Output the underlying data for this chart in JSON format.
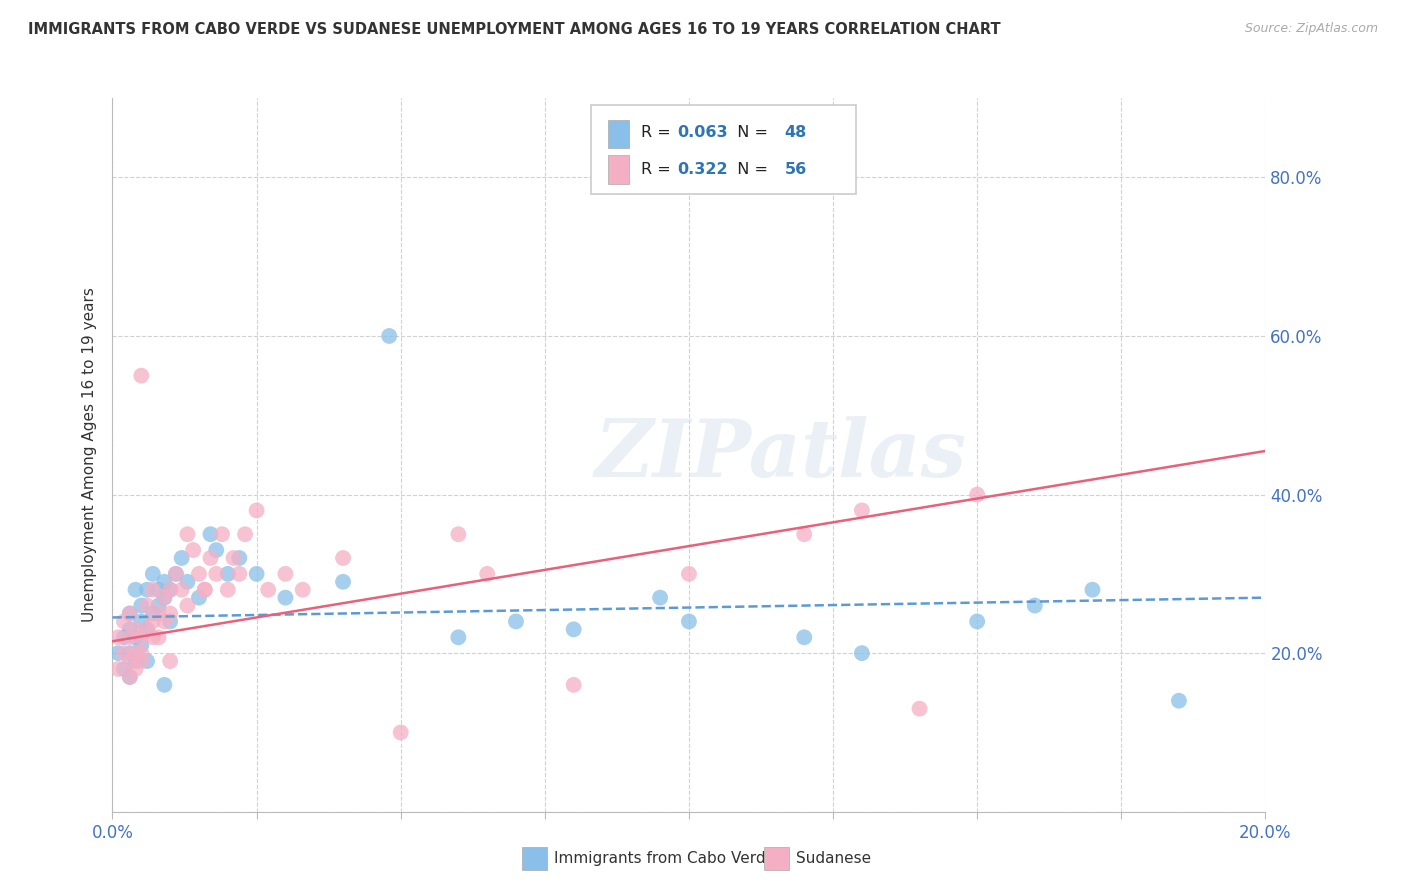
{
  "title": "IMMIGRANTS FROM CABO VERDE VS SUDANESE UNEMPLOYMENT AMONG AGES 16 TO 19 YEARS CORRELATION CHART",
  "source": "Source: ZipAtlas.com",
  "ylabel": "Unemployment Among Ages 16 to 19 years",
  "xlim": [
    0.0,
    0.2
  ],
  "ylim": [
    0.0,
    0.9
  ],
  "cabo_verde_color": "#89bfe8",
  "sudanese_color": "#f5afc4",
  "cabo_verde_line_color": "#5b9bd5",
  "sudanese_line_color": "#e8607a",
  "R_cabo": 0.063,
  "N_cabo": 48,
  "R_sudanese": 0.322,
  "N_sudanese": 56,
  "watermark": "ZIPatlas",
  "background_color": "#ffffff",
  "grid_color": "#cccccc",
  "cabo_verde_x": [
    0.001,
    0.002,
    0.002,
    0.003,
    0.003,
    0.003,
    0.004,
    0.004,
    0.004,
    0.005,
    0.005,
    0.005,
    0.006,
    0.006,
    0.007,
    0.007,
    0.008,
    0.008,
    0.009,
    0.009,
    0.01,
    0.01,
    0.011,
    0.012,
    0.013,
    0.015,
    0.017,
    0.018,
    0.02,
    0.022,
    0.025,
    0.03,
    0.04,
    0.048,
    0.06,
    0.07,
    0.08,
    0.095,
    0.1,
    0.12,
    0.13,
    0.15,
    0.16,
    0.17,
    0.185,
    0.003,
    0.006,
    0.009
  ],
  "cabo_verde_y": [
    0.2,
    0.22,
    0.18,
    0.25,
    0.23,
    0.2,
    0.28,
    0.22,
    0.19,
    0.26,
    0.24,
    0.21,
    0.28,
    0.23,
    0.3,
    0.25,
    0.28,
    0.26,
    0.29,
    0.27,
    0.28,
    0.24,
    0.3,
    0.32,
    0.29,
    0.27,
    0.35,
    0.33,
    0.3,
    0.32,
    0.3,
    0.27,
    0.29,
    0.6,
    0.22,
    0.24,
    0.23,
    0.27,
    0.24,
    0.22,
    0.2,
    0.24,
    0.26,
    0.28,
    0.14,
    0.17,
    0.19,
    0.16
  ],
  "sudanese_x": [
    0.001,
    0.001,
    0.002,
    0.002,
    0.003,
    0.003,
    0.003,
    0.004,
    0.004,
    0.004,
    0.005,
    0.005,
    0.005,
    0.006,
    0.006,
    0.007,
    0.007,
    0.008,
    0.008,
    0.009,
    0.009,
    0.01,
    0.01,
    0.011,
    0.012,
    0.013,
    0.014,
    0.015,
    0.016,
    0.017,
    0.018,
    0.019,
    0.02,
    0.021,
    0.022,
    0.023,
    0.025,
    0.027,
    0.03,
    0.033,
    0.04,
    0.05,
    0.06,
    0.065,
    0.08,
    0.1,
    0.12,
    0.13,
    0.14,
    0.15,
    0.003,
    0.005,
    0.007,
    0.01,
    0.013,
    0.016
  ],
  "sudanese_y": [
    0.22,
    0.18,
    0.24,
    0.2,
    0.22,
    0.19,
    0.25,
    0.23,
    0.2,
    0.18,
    0.55,
    0.22,
    0.19,
    0.26,
    0.23,
    0.28,
    0.24,
    0.25,
    0.22,
    0.27,
    0.24,
    0.28,
    0.25,
    0.3,
    0.28,
    0.35,
    0.33,
    0.3,
    0.28,
    0.32,
    0.3,
    0.35,
    0.28,
    0.32,
    0.3,
    0.35,
    0.38,
    0.28,
    0.3,
    0.28,
    0.32,
    0.1,
    0.35,
    0.3,
    0.16,
    0.3,
    0.35,
    0.38,
    0.13,
    0.4,
    0.17,
    0.2,
    0.22,
    0.19,
    0.26,
    0.28
  ],
  "legend_R_color": "#2e75b6",
  "legend_N_color": "#2e75b6"
}
